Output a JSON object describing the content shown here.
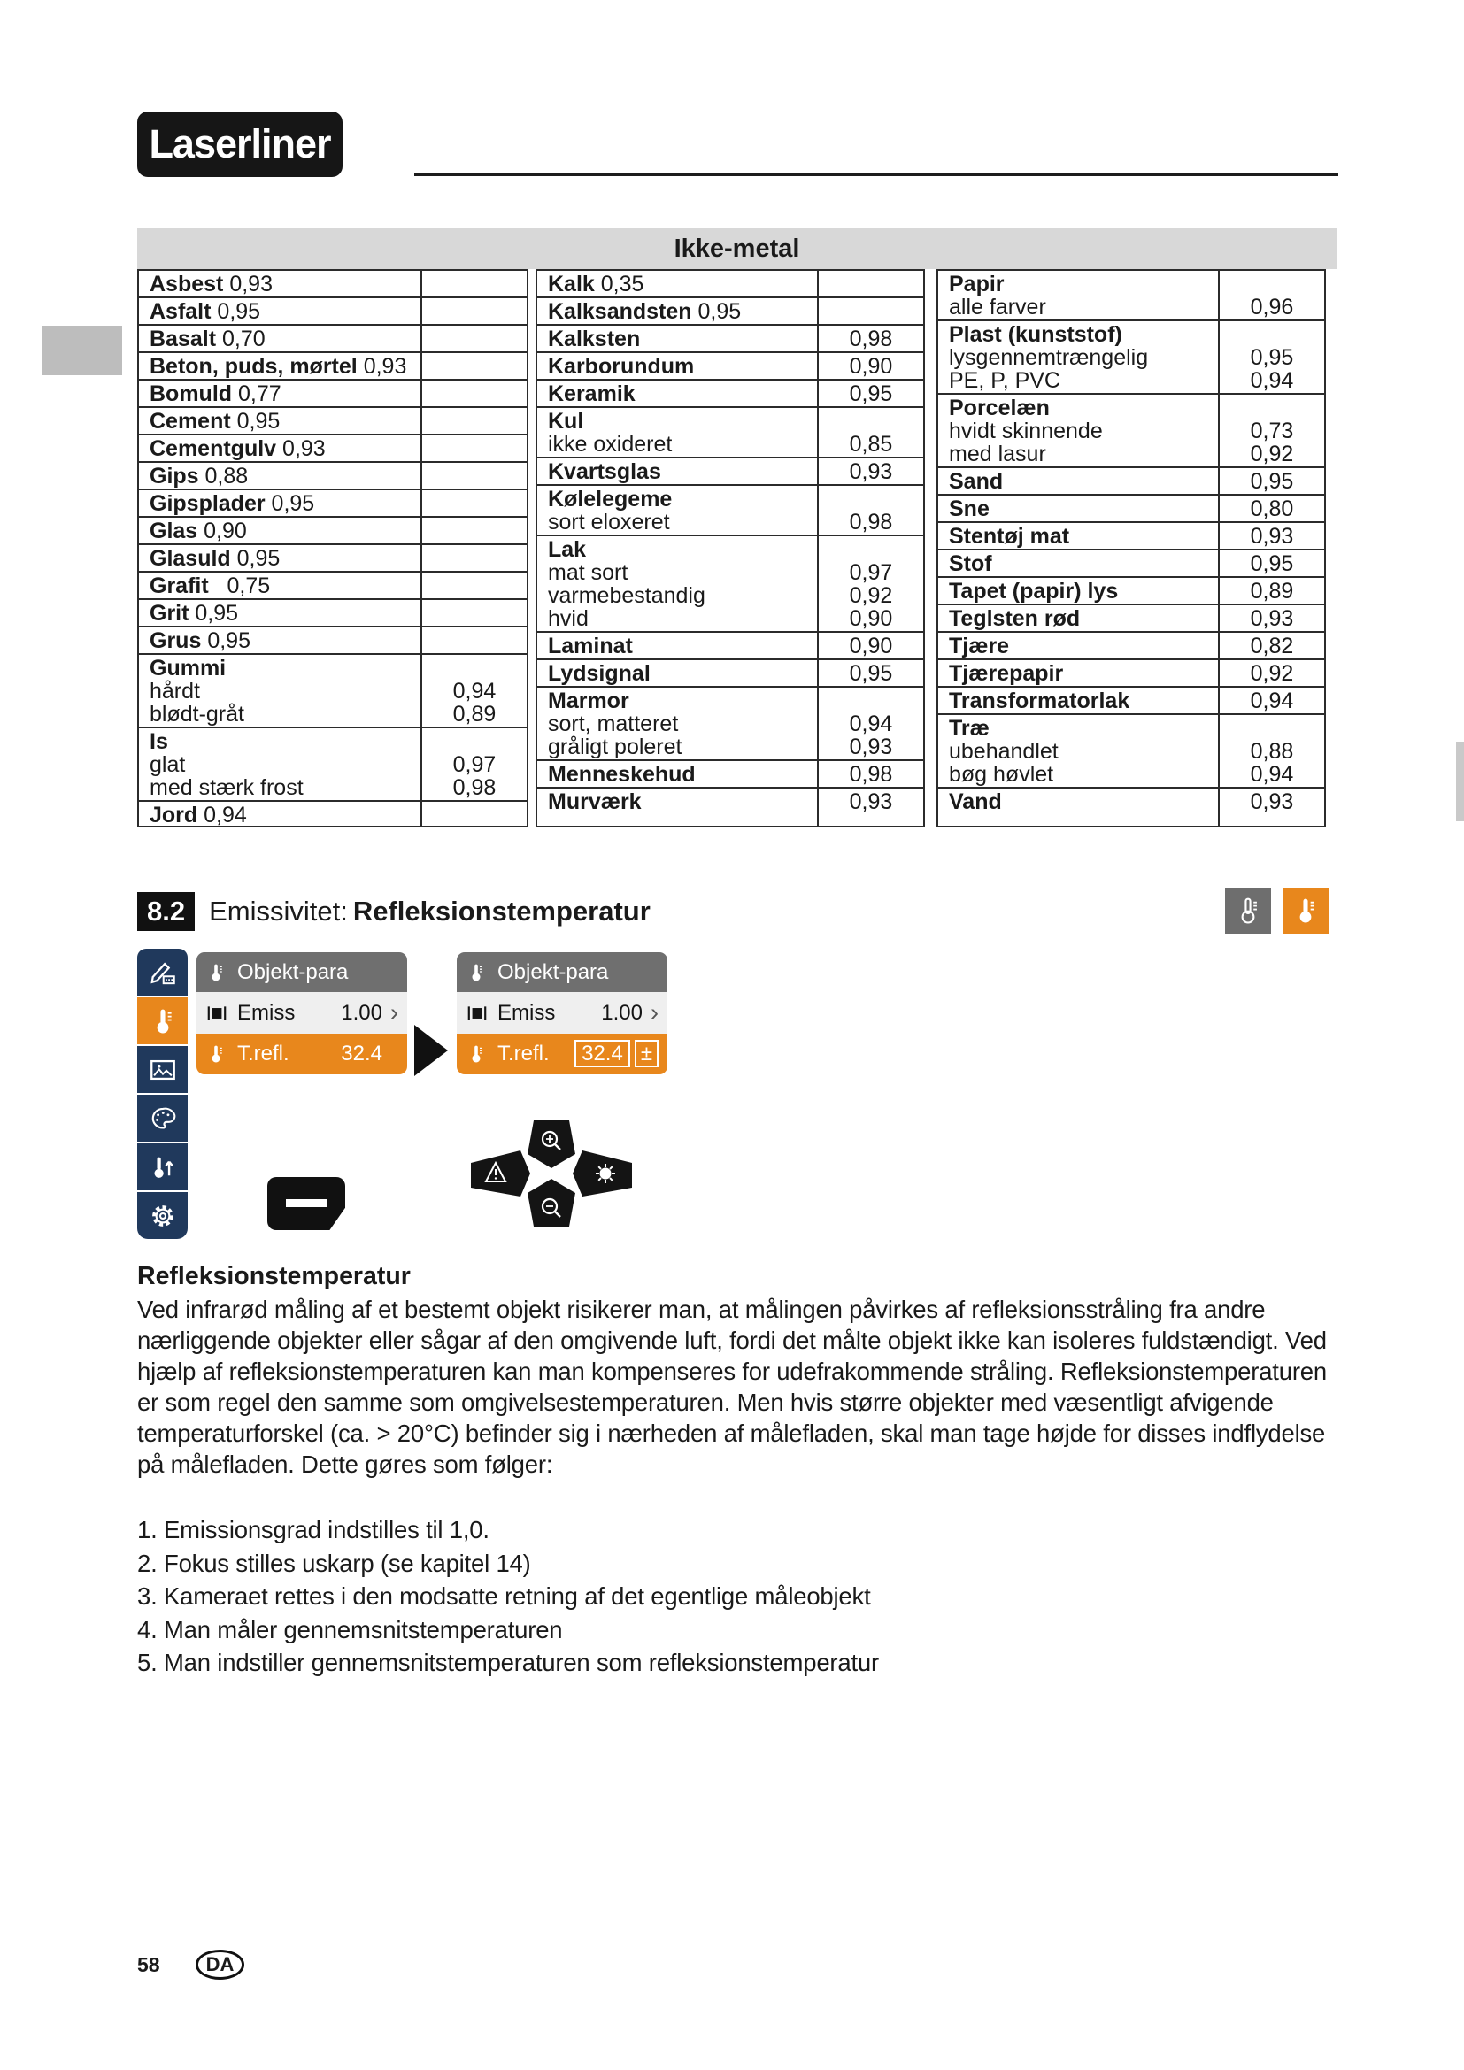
{
  "logo": "Laserliner",
  "colors": {
    "accent_orange": "#e8871c",
    "sidebar_navy": "#20395c",
    "menu_gray": "#6f6f6f",
    "table_header_gray": "#d8d8d8"
  },
  "emissivity_table": {
    "title": "Ikke-metal",
    "groups": [
      [
        {
          "name": "Asbest",
          "inline": "0,93"
        },
        {
          "name": "Asfalt",
          "inline": "0,95"
        },
        {
          "name": "Basalt",
          "inline": "0,70"
        },
        {
          "name": "Beton, puds, mørtel",
          "inline": "0,93"
        },
        {
          "name": "Bomuld",
          "inline": "0,77"
        },
        {
          "name": "Cement",
          "inline": "0,95"
        },
        {
          "name": "Cementgulv",
          "inline": "0,93"
        },
        {
          "name": "Gips",
          "inline": "0,88"
        },
        {
          "name": "Gipsplader",
          "inline": "0,95"
        },
        {
          "name": "Glas",
          "inline": "0,90"
        },
        {
          "name": "Glasuld",
          "inline": "0,95"
        },
        {
          "name": "Grafit",
          "inline": "0,75",
          "wide_gap": true
        },
        {
          "name": "Grit",
          "inline": "0,95"
        },
        {
          "name": "Grus",
          "inline": "0,95"
        },
        {
          "name": "Gummi",
          "subs": [
            {
              "label": "hårdt",
              "value": "0,94"
            },
            {
              "label": "blødt-gråt",
              "value": "0,89"
            }
          ]
        },
        {
          "name": "Is",
          "subs": [
            {
              "label": "glat",
              "value": "0,97"
            },
            {
              "label": "med stærk frost",
              "value": "0,98"
            }
          ]
        },
        {
          "name": "Jord",
          "inline": "0,94"
        }
      ],
      [
        {
          "name": "Kalk",
          "inline": "0,35"
        },
        {
          "name": "Kalksandsten",
          "inline": "0,95"
        },
        {
          "name": "Kalksten",
          "value": "0,98"
        },
        {
          "name": "Karborundum",
          "value": "0,90"
        },
        {
          "name": "Keramik",
          "value": "0,95"
        },
        {
          "name": "Kul",
          "subs": [
            {
              "label": "ikke oxideret",
              "value": "0,85"
            }
          ]
        },
        {
          "name": "Kvartsglas",
          "value": "0,93"
        },
        {
          "name": "Kølelegeme",
          "subs": [
            {
              "label": "sort eloxeret",
              "value": "0,98"
            }
          ]
        },
        {
          "name": "Lak",
          "subs": [
            {
              "label": "mat sort",
              "value": "0,97"
            },
            {
              "label": "varmebestandig",
              "value": "0,92"
            },
            {
              "label": "hvid",
              "value": "0,90"
            }
          ]
        },
        {
          "name": "Laminat",
          "value": "0,90"
        },
        {
          "name": "Lydsignal",
          "value": "0,95"
        },
        {
          "name": "Marmor",
          "subs": [
            {
              "label": "sort, matteret",
              "value": "0,94"
            },
            {
              "label": "gråligt poleret",
              "value": "0,93"
            }
          ]
        },
        {
          "name": "Menneskehud",
          "value": "0,98"
        },
        {
          "name": "Murværk",
          "value": "0,93"
        }
      ],
      [
        {
          "name": "Papir",
          "subs": [
            {
              "label": "alle farver",
              "value": "0,96"
            }
          ]
        },
        {
          "name": "Plast (kunststof)",
          "subs": [
            {
              "label": "lysgennemtrængelig",
              "value": "0,95"
            },
            {
              "label": "PE, P, PVC",
              "value": "0,94"
            }
          ]
        },
        {
          "name": "Porcelæn",
          "subs": [
            {
              "label": "hvidt skinnende",
              "value": "0,73"
            },
            {
              "label": "med lasur",
              "value": "0,92"
            }
          ]
        },
        {
          "name": "Sand",
          "value": "0,95"
        },
        {
          "name": "Sne",
          "value": "0,80"
        },
        {
          "name": "Stentøj mat",
          "value": "0,93"
        },
        {
          "name": "Stof",
          "value": "0,95"
        },
        {
          "name": "Tapet (papir) lys",
          "value": "0,89"
        },
        {
          "name": "Teglsten rød",
          "value": "0,93"
        },
        {
          "name": "Tjære",
          "value": "0,82"
        },
        {
          "name": "Tjærepapir",
          "value": "0,92"
        },
        {
          "name": "Transformatorlak",
          "value": "0,94"
        },
        {
          "name": "Træ",
          "subs": [
            {
              "label": "ubehandlet",
              "value": "0,88"
            },
            {
              "label": "bøg høvlet",
              "value": "0,94"
            }
          ]
        },
        {
          "name": "Vand",
          "value": "0,93"
        }
      ]
    ]
  },
  "section": {
    "number": "8.2",
    "prefix": "Emissivitet:",
    "title": "Refleksionstemperatur"
  },
  "camera_menu": {
    "sidebar": [
      {
        "icon": "annotation-icon",
        "active": false
      },
      {
        "icon": "thermometer-icon",
        "active": true
      },
      {
        "icon": "image-icon",
        "active": false
      },
      {
        "icon": "palette-icon",
        "active": false
      },
      {
        "icon": "temp-range-icon",
        "active": false
      },
      {
        "icon": "settings-icon",
        "active": false
      }
    ],
    "panels": [
      {
        "title": "Objekt-para",
        "rows": [
          {
            "icon": "emissivity-icon",
            "label": "Emiss",
            "value": "1.00",
            "chevron": "›"
          },
          {
            "icon": "thermometer-icon",
            "label": "T.refl.",
            "value": "32.4",
            "editing": false
          }
        ]
      },
      {
        "title": "Objekt-para",
        "rows": [
          {
            "icon": "emissivity-icon",
            "label": "Emiss",
            "value": "1.00",
            "chevron": "›"
          },
          {
            "icon": "thermometer-icon",
            "label": "T.refl.",
            "value": "32.4",
            "editing": true,
            "adjust_symbol": "±"
          }
        ]
      }
    ],
    "dpad": {
      "up": "zoom-in-icon",
      "down": "zoom-out-icon",
      "left": "alarm-icon",
      "right": "brightness-icon"
    }
  },
  "body": {
    "heading": "Refleksionstemperatur",
    "paragraph": "Ved infrarød måling af et bestemt objekt risikerer man, at målingen påvirkes af refleksionsstråling fra andre nærliggende objekter eller sågar af den omgivende luft, fordi det målte objekt ikke kan isoleres fuldstændigt. Ved hjælp af refleksionstemperaturen kan man kompenseres for udefrakommende stråling. Refleksionstemperaturen er som regel den samme som omgivelsestemperaturen. Men hvis større objekter med væsentligt afvigende temperaturforskel (ca. > 20°C) befinder sig i nærheden af målefladen, skal man tage højde for disses indflydelse på målefladen. Dette gøres som følger:",
    "steps": [
      "Emissionsgrad indstilles til 1,0.",
      "Fokus stilles uskarp (se kapitel 14)",
      "Kameraet rettes i den modsatte retning af det egentlige måleobjekt",
      "Man måler gennemsnitstemperaturen",
      "Man indstiller gennemsnitstemperaturen som refleksionstemperatur"
    ]
  },
  "footer": {
    "page_number": "58",
    "language": "DA"
  }
}
